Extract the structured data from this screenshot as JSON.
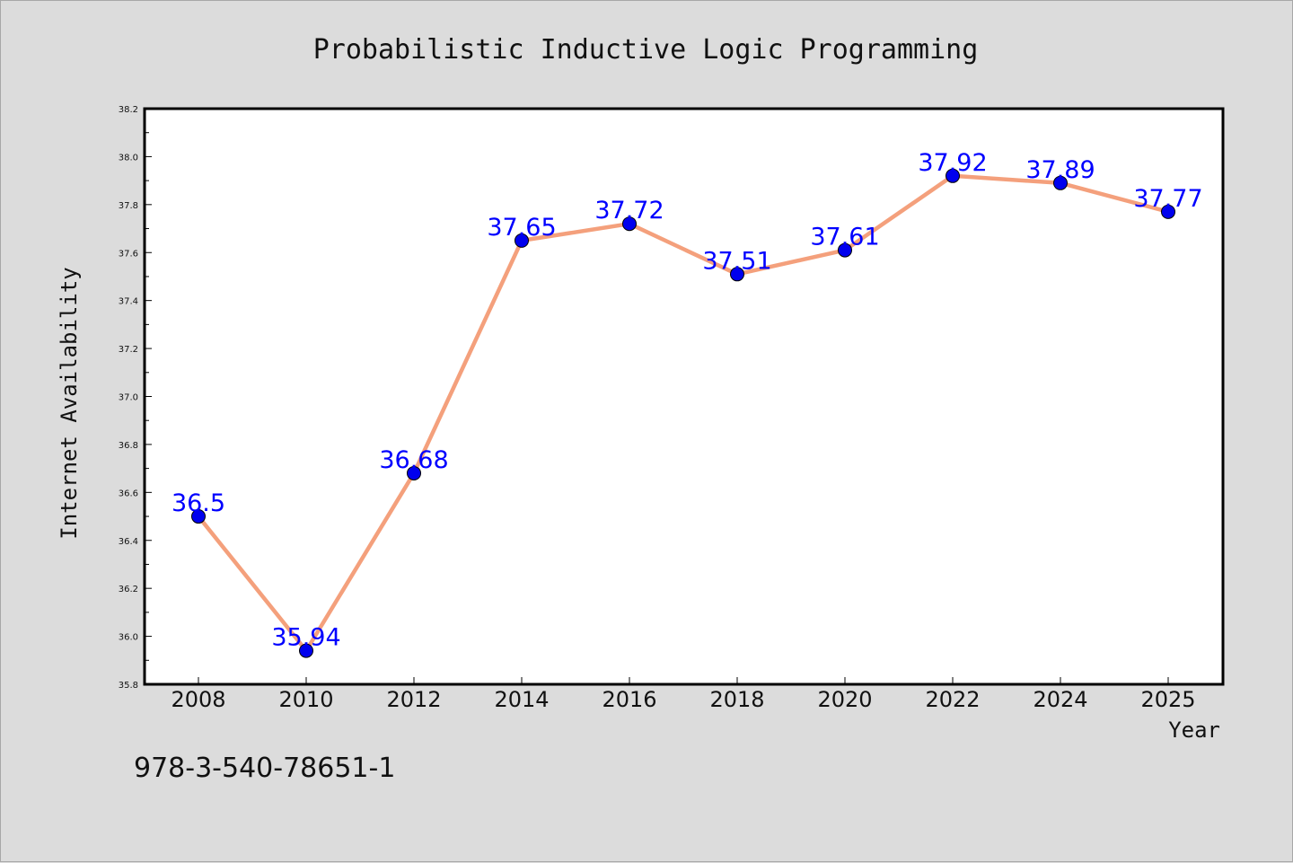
{
  "footer": {
    "text": "978-3-540-78651-1"
  },
  "chart_data": {
    "type": "line",
    "title": "Probabilistic Inductive Logic Programming",
    "xlabel": "Year",
    "ylabel": "Internet Availability",
    "ylim": [
      35.8,
      38.2
    ],
    "yticks": [
      35.8,
      36.0,
      36.2,
      36.4,
      36.6,
      36.8,
      37.0,
      37.2,
      37.4,
      37.6,
      37.8,
      38.0,
      38.2
    ],
    "x": [
      "2008",
      "2010",
      "2012",
      "2014",
      "2016",
      "2018",
      "2020",
      "2022",
      "2024",
      "2025"
    ],
    "series": [
      {
        "values": [
          36.5,
          35.94,
          36.68,
          37.65,
          37.72,
          37.51,
          37.61,
          37.92,
          37.89,
          37.77
        ],
        "labels": [
          "36.5",
          "35.94",
          "36.68",
          "37.65",
          "37.72",
          "37.51",
          "37.61",
          "37.92",
          "37.89",
          "37.77"
        ],
        "line_color": "#f4a07c",
        "marker_color": "#0000ee"
      }
    ],
    "grid": false,
    "legend": "none"
  }
}
